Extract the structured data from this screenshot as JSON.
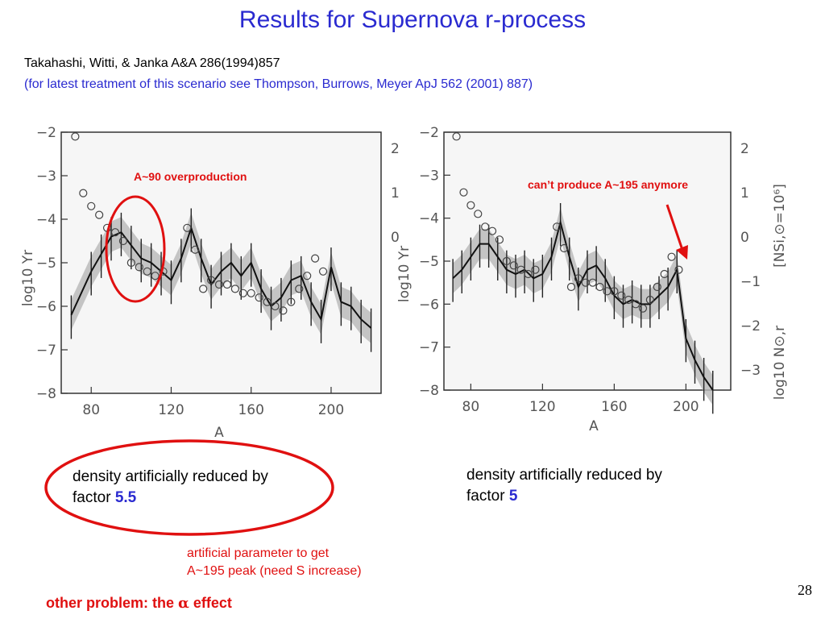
{
  "slide": {
    "title": "Results for Supernova r-process",
    "ref_line1": "Takahashi, Witti, & Janka A&A 286(1994)857",
    "ref_line2": "(for latest treatment of this scenario see Thompson, Burrows, Meyer ApJ 562 (2001) 887)",
    "page_number": "28",
    "accent_color": "#2a2ad0",
    "alert_color": "#e01010"
  },
  "annotations": {
    "left": "A~90 overproduction",
    "right": "can’t produce A~195 anymore",
    "artificial_line1": "artificial parameter to get",
    "artificial_line2": "A~195 peak (need S increase)",
    "other_problem_prefix": "other problem: the ",
    "other_problem_symbol": "α",
    "other_problem_suffix": " effect"
  },
  "captions": {
    "left_text": "density artificially reduced by",
    "left_factor_prefix": "factor ",
    "left_factor_value": "5.5",
    "right_text": "density artificially reduced by",
    "right_factor_prefix": "factor ",
    "right_factor_value": "5"
  },
  "chart_data": [
    {
      "type": "line",
      "xlabel": "A",
      "ylabel": "log10 Yr",
      "xlim": [
        65,
        225
      ],
      "ylim": [
        -8,
        -2
      ],
      "xticks": [
        "80",
        "120",
        "160",
        "200"
      ],
      "yticks": [
        "-2",
        "-3",
        "-4",
        "-5",
        "-6",
        "-7",
        "-8"
      ],
      "yticks_right": [
        "2",
        "1",
        "0"
      ],
      "grid": false,
      "series": [
        {
          "x": [
            70,
            80,
            85,
            90,
            95,
            100,
            105,
            110,
            115,
            120,
            125,
            130,
            135,
            140,
            145,
            150,
            155,
            160,
            165,
            170,
            175,
            180,
            185,
            190,
            195,
            200,
            205,
            210,
            215,
            220
          ],
          "values": [
            -6.2,
            -5.2,
            -4.8,
            -4.4,
            -4.3,
            -4.6,
            -4.9,
            -5.0,
            -5.2,
            -5.4,
            -4.9,
            -4.2,
            -4.9,
            -5.5,
            -5.2,
            -5.0,
            -5.3,
            -5.0,
            -5.6,
            -6.0,
            -5.8,
            -5.4,
            -5.3,
            -5.9,
            -6.3,
            -5.1,
            -5.9,
            -6.0,
            -6.3,
            -6.5
          ]
        },
        {
          "x": [
            72,
            76,
            80,
            84,
            88,
            92,
            96,
            100,
            104,
            108,
            112,
            116,
            128,
            132,
            136,
            140,
            144,
            148,
            152,
            156,
            160,
            164,
            168,
            172,
            176,
            180,
            184,
            188,
            192,
            196
          ],
          "values": [
            -2.1,
            -3.4,
            -3.7,
            -3.9,
            -4.2,
            -4.3,
            -4.5,
            -5.0,
            -5.1,
            -5.2,
            -5.3,
            -5.2,
            -4.2,
            -4.7,
            -5.6,
            -5.4,
            -5.5,
            -5.5,
            -5.6,
            -5.7,
            -5.7,
            -5.8,
            -5.9,
            -6.0,
            -6.1,
            -5.9,
            -5.6,
            -5.3,
            -4.9,
            -5.2
          ]
        }
      ]
    },
    {
      "type": "line",
      "xlabel": "A",
      "ylabel": "log10 Yr",
      "xlim": [
        65,
        225
      ],
      "ylim": [
        -8,
        -2
      ],
      "xticks": [
        "80",
        "120",
        "160",
        "200"
      ],
      "yticks": [
        "-2",
        "-3",
        "-4",
        "-5",
        "-6",
        "-7",
        "-8"
      ],
      "yticks_right": [
        "2",
        "1",
        "0",
        "-1",
        "-2",
        "-3"
      ],
      "right_axis_label": "log10 N⊙,r",
      "right_bracket": "[NSi,⊙=10⁶]",
      "grid": false,
      "series": [
        {
          "x": [
            70,
            75,
            80,
            85,
            90,
            95,
            100,
            105,
            110,
            115,
            120,
            125,
            130,
            135,
            140,
            145,
            150,
            155,
            160,
            165,
            170,
            175,
            180,
            185,
            190,
            195,
            200,
            205,
            210,
            215
          ],
          "values": [
            -5.4,
            -5.2,
            -4.9,
            -4.6,
            -4.6,
            -4.9,
            -5.2,
            -5.3,
            -5.2,
            -5.4,
            -5.3,
            -4.9,
            -4.1,
            -4.9,
            -5.6,
            -5.2,
            -5.1,
            -5.4,
            -5.8,
            -6.0,
            -5.9,
            -6.0,
            -6.0,
            -5.8,
            -5.6,
            -5.2,
            -6.8,
            -7.3,
            -7.7,
            -8.0
          ]
        },
        {
          "x": [
            72,
            76,
            80,
            84,
            88,
            92,
            96,
            100,
            104,
            108,
            112,
            116,
            128,
            132,
            136,
            140,
            144,
            148,
            152,
            156,
            160,
            164,
            168,
            172,
            176,
            180,
            184,
            188,
            192,
            196
          ],
          "values": [
            -2.1,
            -3.4,
            -3.7,
            -3.9,
            -4.2,
            -4.3,
            -4.5,
            -5.0,
            -5.1,
            -5.2,
            -5.3,
            -5.2,
            -4.2,
            -4.7,
            -5.6,
            -5.4,
            -5.5,
            -5.5,
            -5.6,
            -5.7,
            -5.7,
            -5.8,
            -5.9,
            -6.0,
            -6.1,
            -5.9,
            -5.6,
            -5.3,
            -4.9,
            -5.2
          ]
        }
      ]
    }
  ]
}
